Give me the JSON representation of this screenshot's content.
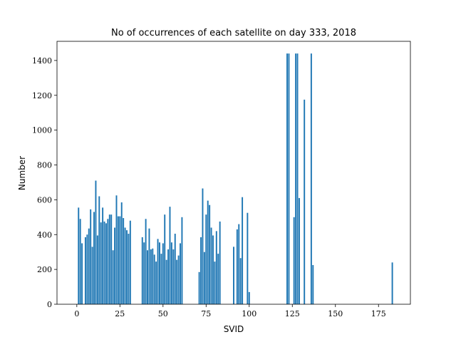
{
  "chart_data": {
    "type": "bar",
    "title": "No of occurrences of each satellite on day 333, 2018",
    "xlabel": "SVID",
    "ylabel": "Number",
    "xlim": [
      -11.5,
      193.5
    ],
    "ylim": [
      0,
      1510
    ],
    "xticks": [
      0,
      25,
      50,
      75,
      100,
      125,
      150,
      175
    ],
    "yticks": [
      0,
      200,
      400,
      600,
      800,
      1000,
      1200,
      1400
    ],
    "bar_color": "#1f77b4",
    "grid": false,
    "x": [
      1,
      2,
      3,
      5,
      6,
      7,
      8,
      9,
      10,
      11,
      12,
      13,
      14,
      15,
      16,
      17,
      18,
      19,
      20,
      21,
      22,
      23,
      24,
      25,
      26,
      27,
      28,
      29,
      30,
      31,
      32,
      33,
      38,
      39,
      40,
      41,
      42,
      43,
      44,
      45,
      46,
      47,
      48,
      49,
      50,
      51,
      52,
      53,
      54,
      55,
      56,
      57,
      58,
      59,
      60,
      61,
      62,
      71,
      72,
      73,
      74,
      75,
      76,
      77,
      78,
      79,
      80,
      81,
      82,
      83,
      84,
      85,
      91,
      93,
      94,
      95,
      96,
      97,
      99,
      100,
      122,
      123,
      126,
      127,
      128,
      129,
      132,
      136,
      137,
      183
    ],
    "values": [
      555,
      490,
      350,
      385,
      400,
      435,
      545,
      330,
      530,
      710,
      395,
      620,
      470,
      555,
      475,
      465,
      490,
      515,
      515,
      310,
      440,
      625,
      505,
      505,
      585,
      495,
      440,
      425,
      405,
      480,
      0,
      0,
      385,
      355,
      490,
      310,
      435,
      315,
      320,
      285,
      245,
      375,
      355,
      290,
      350,
      515,
      255,
      315,
      560,
      355,
      315,
      405,
      255,
      280,
      350,
      500,
      0,
      185,
      385,
      665,
      300,
      515,
      595,
      570,
      440,
      395,
      245,
      420,
      290,
      475,
      0,
      0,
      330,
      430,
      460,
      265,
      615,
      0,
      525,
      70,
      1440,
      1440,
      500,
      1440,
      1440,
      610,
      1175,
      1440,
      225,
      240
    ]
  }
}
